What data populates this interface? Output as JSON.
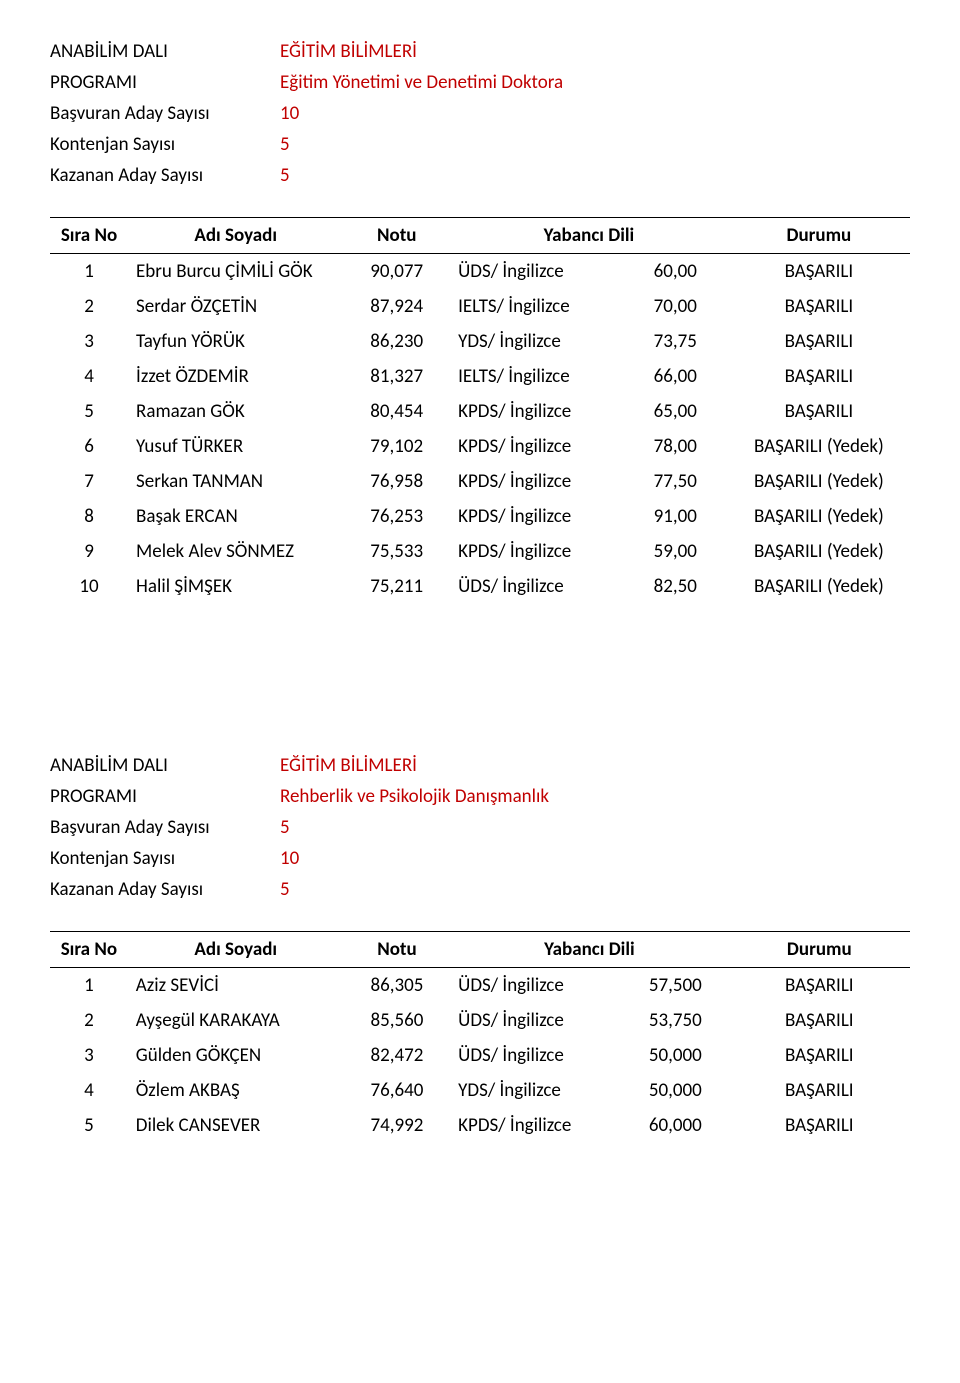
{
  "section1": {
    "info": {
      "anabilim_label": "ANABİLİM DALI",
      "anabilim_value": "EĞİTİM BİLİMLERİ",
      "program_label": "PROGRAMI",
      "program_value": "Eğitim Yönetimi ve Denetimi Doktora",
      "basvuran_label": "Başvuran Aday Sayısı",
      "basvuran_value": "10",
      "kontenjan_label": "Kontenjan Sayısı",
      "kontenjan_value": "5",
      "kazanan_label": "Kazanan Aday Sayısı",
      "kazanan_value": "5"
    },
    "headers": {
      "sira": "Sıra No",
      "adi": "Adı Soyadı",
      "notu": "Notu",
      "dil": "Yabancı Dili",
      "durum": "Durumu"
    },
    "rows": [
      {
        "sira": "1",
        "adi": "Ebru Burcu ÇİMİLİ GÖK",
        "notu": "90,077",
        "dil": "ÜDS/ İngilizce",
        "puan": "60,00",
        "durum": "BAŞARILI"
      },
      {
        "sira": "2",
        "adi": "Serdar ÖZÇETİN",
        "notu": "87,924",
        "dil": "IELTS/ İngilizce",
        "puan": "70,00",
        "durum": "BAŞARILI"
      },
      {
        "sira": "3",
        "adi": "Tayfun YÖRÜK",
        "notu": "86,230",
        "dil": "YDS/ İngilizce",
        "puan": "73,75",
        "durum": "BAŞARILI"
      },
      {
        "sira": "4",
        "adi": "İzzet ÖZDEMİR",
        "notu": "81,327",
        "dil": "IELTS/ İngilizce",
        "puan": "66,00",
        "durum": "BAŞARILI"
      },
      {
        "sira": "5",
        "adi": "Ramazan GÖK",
        "notu": "80,454",
        "dil": "KPDS/ İngilizce",
        "puan": "65,00",
        "durum": "BAŞARILI"
      },
      {
        "sira": "6",
        "adi": "Yusuf TÜRKER",
        "notu": "79,102",
        "dil": "KPDS/ İngilizce",
        "puan": "78,00",
        "durum": "BAŞARILI (Yedek)"
      },
      {
        "sira": "7",
        "adi": "Serkan TANMAN",
        "notu": "76,958",
        "dil": "KPDS/ İngilizce",
        "puan": "77,50",
        "durum": "BAŞARILI (Yedek)"
      },
      {
        "sira": "8",
        "adi": "Başak ERCAN",
        "notu": "76,253",
        "dil": "KPDS/ İngilizce",
        "puan": "91,00",
        "durum": "BAŞARILI (Yedek)"
      },
      {
        "sira": "9",
        "adi": "Melek Alev SÖNMEZ",
        "notu": "75,533",
        "dil": "KPDS/ İngilizce",
        "puan": "59,00",
        "durum": "BAŞARILI (Yedek)"
      },
      {
        "sira": "10",
        "adi": "Halil ŞİMŞEK",
        "notu": "75,211",
        "dil": "ÜDS/ İngilizce",
        "puan": "82,50",
        "durum": "BAŞARILI (Yedek)"
      }
    ]
  },
  "section2": {
    "info": {
      "anabilim_label": "ANABİLİM DALI",
      "anabilim_value": "EĞİTİM BİLİMLERİ",
      "program_label": "PROGRAMI",
      "program_value": "Rehberlik ve Psikolojik Danışmanlık",
      "basvuran_label": "Başvuran Aday Sayısı",
      "basvuran_value": "5",
      "kontenjan_label": "Kontenjan Sayısı",
      "kontenjan_value": "10",
      "kazanan_label": "Kazanan Aday Sayısı",
      "kazanan_value": "5"
    },
    "headers": {
      "sira": "Sıra No",
      "adi": "Adı Soyadı",
      "notu": "Notu",
      "dil": "Yabancı Dili",
      "durum": "Durumu"
    },
    "rows": [
      {
        "sira": "1",
        "adi": "Aziz SEVİCİ",
        "notu": "86,305",
        "dil": "ÜDS/ İngilizce",
        "puan": "57,500",
        "durum": "BAŞARILI"
      },
      {
        "sira": "2",
        "adi": "Ayşegül KARAKAYA",
        "notu": "85,560",
        "dil": "ÜDS/ İngilizce",
        "puan": "53,750",
        "durum": "BAŞARILI"
      },
      {
        "sira": "3",
        "adi": "Gülden GÖKÇEN",
        "notu": "82,472",
        "dil": "ÜDS/ İngilizce",
        "puan": "50,000",
        "durum": "BAŞARILI"
      },
      {
        "sira": "4",
        "adi": "Özlem AKBAŞ",
        "notu": "76,640",
        "dil": "YDS/ İngilizce",
        "puan": "50,000",
        "durum": "BAŞARILI"
      },
      {
        "sira": "5",
        "adi": "Dilek CANSEVER",
        "notu": "74,992",
        "dil": "KPDS/ İngilizce",
        "puan": "60,000",
        "durum": "BAŞARILI"
      }
    ]
  },
  "colors": {
    "red": "#c00000",
    "text": "#000000",
    "background": "#ffffff"
  }
}
